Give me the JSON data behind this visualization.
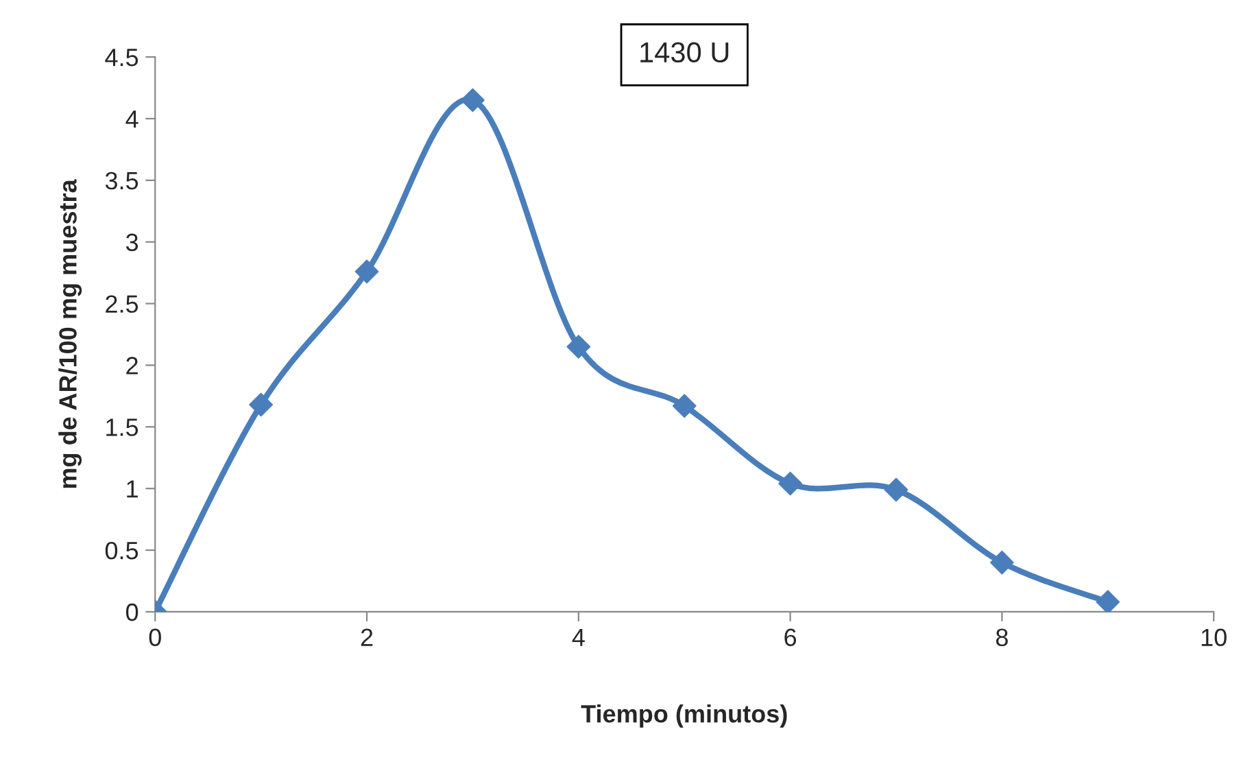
{
  "chart_data": {
    "type": "line",
    "title": "1430 U",
    "xlabel": "Tiempo (minutos)",
    "ylabel": "mg de AR/100 mg muestra",
    "x": [
      0,
      1,
      2,
      3,
      4,
      5,
      6,
      7,
      8,
      9
    ],
    "series": [
      {
        "color": "#4a7ebb",
        "values": [
          0,
          1.68,
          2.76,
          4.15,
          2.15,
          1.67,
          1.04,
          0.99,
          0.4,
          0.08
        ]
      }
    ],
    "xlim": [
      0,
      10
    ],
    "xticks": [
      0,
      2,
      4,
      6,
      8,
      10
    ],
    "ylim": [
      0,
      4.5
    ],
    "yticks": [
      0,
      0.5,
      1,
      1.5,
      2,
      2.5,
      3,
      3.5,
      4,
      4.5
    ],
    "grid": false,
    "legend": false,
    "marker": "diamond",
    "line_style": "solid"
  }
}
